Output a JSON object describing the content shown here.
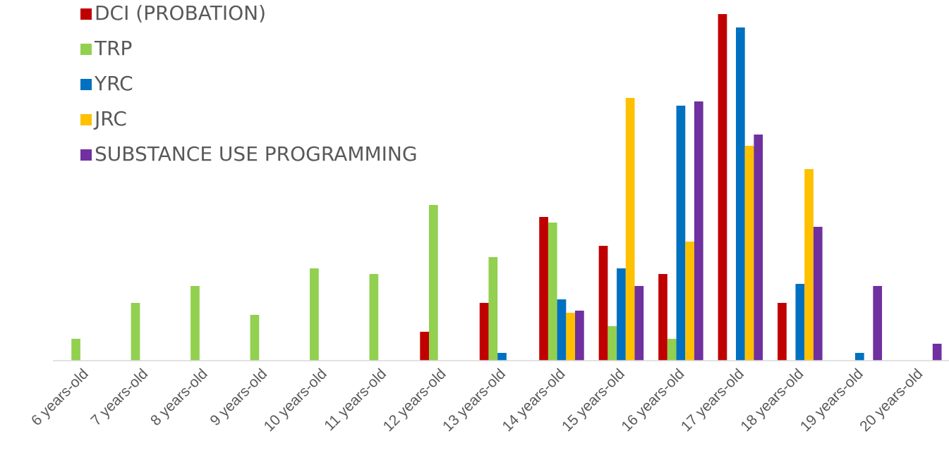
{
  "chart_data": {
    "type": "bar",
    "categories": [
      "6 years-old",
      "7 years-old",
      "8 years-old",
      "9 years-old",
      "10 years-old",
      "11 years-old",
      "12 years-old",
      "13 years-old",
      "14 years-old",
      "15 years-old",
      "16 years-old",
      "17 years-old",
      "18 years-old",
      "19 years-old",
      "20 years-old"
    ],
    "series": [
      {
        "name": "DCI (PROBATION)",
        "color": "#c00000",
        "values": [
          0,
          0,
          0,
          0,
          0,
          0,
          41,
          82,
          204,
          163,
          123,
          492,
          82,
          0,
          0
        ]
      },
      {
        "name": "TRP",
        "color": "#92d050",
        "values": [
          31,
          82,
          106,
          65,
          131,
          123,
          221,
          147,
          196,
          49,
          31,
          0,
          0,
          0,
          0
        ]
      },
      {
        "name": "YRC",
        "color": "#0070c0",
        "values": [
          0,
          0,
          0,
          0,
          0,
          0,
          0,
          11,
          87,
          131,
          362,
          473,
          109,
          11,
          0
        ]
      },
      {
        "name": "JRC",
        "color": "#ffc000",
        "values": [
          0,
          0,
          0,
          0,
          0,
          0,
          0,
          0,
          68,
          373,
          169,
          305,
          272,
          0,
          0
        ]
      },
      {
        "name": "SUBSTANCE USE PROGRAMMING",
        "color": "#7030a0",
        "values": [
          0,
          0,
          0,
          0,
          0,
          0,
          0,
          0,
          71,
          106,
          368,
          321,
          190,
          106,
          24
        ]
      }
    ],
    "ylim": [
      0,
      500
    ],
    "legend": "top-left"
  }
}
